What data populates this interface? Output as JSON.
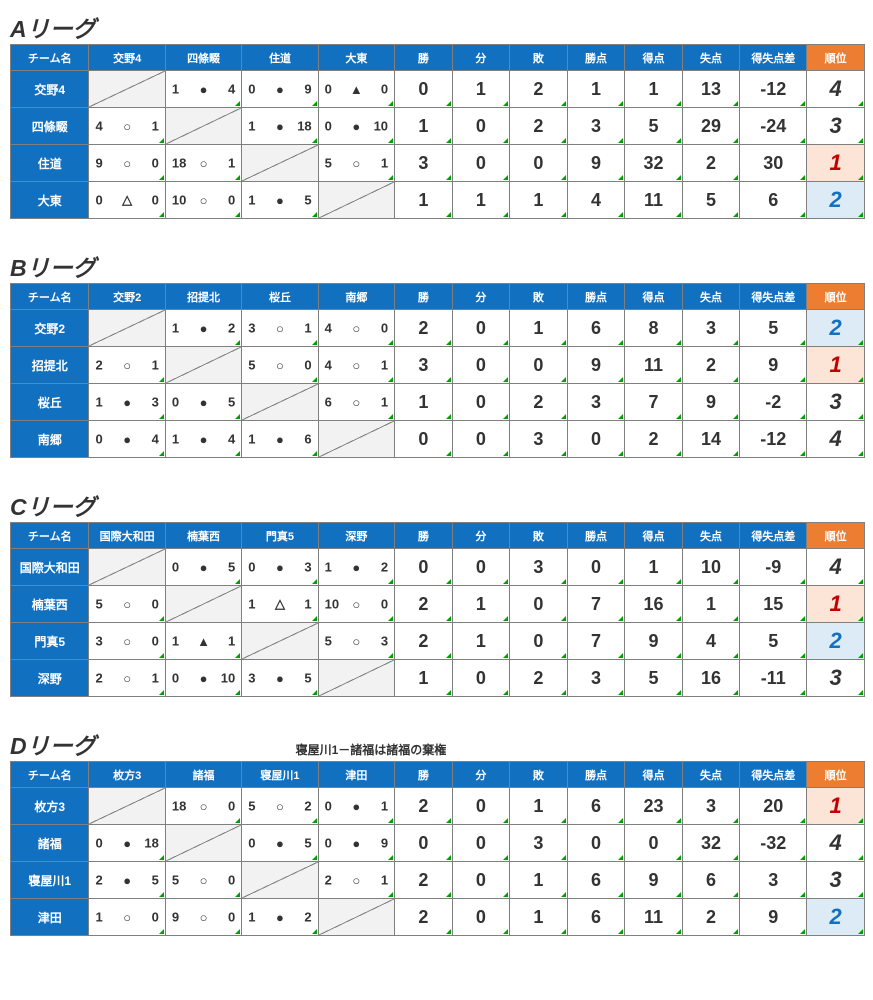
{
  "columns_common": [
    "チーム名",
    "勝",
    "分",
    "敗",
    "勝点",
    "得点",
    "失点",
    "得失点差",
    "順位"
  ],
  "result_mark": {
    "win": "○",
    "loss": "●",
    "draw": "▲",
    "draw2": "△"
  },
  "colors": {
    "header_bg": "#1270c1",
    "rank_header_bg": "#ed7d31",
    "rank1_bg": "#fce4d6",
    "rank1_fg": "#c00000",
    "rank2_bg": "#ddebf7",
    "rank2_fg": "#1270c1",
    "diag_bg": "#f2f2f2",
    "border": "#7f7f7f"
  },
  "leagues": [
    {
      "title": "Aリーグ",
      "teams": [
        "交野4",
        "四條畷",
        "住道",
        "大東"
      ],
      "match_headers": [
        "交野4",
        "四條畷",
        "住道",
        "大東"
      ],
      "rows": [
        {
          "team": "交野4",
          "matches": [
            null,
            {
              "l": "1",
              "m": "●",
              "r": "4"
            },
            {
              "l": "0",
              "m": "●",
              "r": "9"
            },
            {
              "l": "0",
              "m": "▲",
              "r": "0"
            }
          ],
          "stats": [
            "0",
            "1",
            "2",
            "1",
            "1",
            "13",
            "-12"
          ],
          "rank": 4
        },
        {
          "team": "四條畷",
          "matches": [
            {
              "l": "4",
              "m": "○",
              "r": "1"
            },
            null,
            {
              "l": "1",
              "m": "●",
              "r": "18"
            },
            {
              "l": "0",
              "m": "●",
              "r": "10"
            }
          ],
          "stats": [
            "1",
            "0",
            "2",
            "3",
            "5",
            "29",
            "-24"
          ],
          "rank": 3
        },
        {
          "team": "住道",
          "matches": [
            {
              "l": "9",
              "m": "○",
              "r": "0"
            },
            {
              "l": "18",
              "m": "○",
              "r": "1"
            },
            null,
            {
              "l": "5",
              "m": "○",
              "r": "1"
            }
          ],
          "stats": [
            "3",
            "0",
            "0",
            "9",
            "32",
            "2",
            "30"
          ],
          "rank": 1
        },
        {
          "team": "大東",
          "matches": [
            {
              "l": "0",
              "m": "△",
              "r": "0"
            },
            {
              "l": "10",
              "m": "○",
              "r": "0"
            },
            {
              "l": "1",
              "m": "●",
              "r": "5"
            },
            null
          ],
          "stats": [
            "1",
            "1",
            "1",
            "4",
            "11",
            "5",
            "6"
          ],
          "rank": 2
        }
      ]
    },
    {
      "title": "Bリーグ",
      "teams": [
        "交野2",
        "招提北",
        "桜丘",
        "南郷"
      ],
      "match_headers": [
        "交野2",
        "招提北",
        "桜丘",
        "南郷"
      ],
      "rows": [
        {
          "team": "交野2",
          "matches": [
            null,
            {
              "l": "1",
              "m": "●",
              "r": "2"
            },
            {
              "l": "3",
              "m": "○",
              "r": "1"
            },
            {
              "l": "4",
              "m": "○",
              "r": "0"
            }
          ],
          "stats": [
            "2",
            "0",
            "1",
            "6",
            "8",
            "3",
            "5"
          ],
          "rank": 2
        },
        {
          "team": "招提北",
          "matches": [
            {
              "l": "2",
              "m": "○",
              "r": "1"
            },
            null,
            {
              "l": "5",
              "m": "○",
              "r": "0"
            },
            {
              "l": "4",
              "m": "○",
              "r": "1"
            }
          ],
          "stats": [
            "3",
            "0",
            "0",
            "9",
            "11",
            "2",
            "9"
          ],
          "rank": 1
        },
        {
          "team": "桜丘",
          "matches": [
            {
              "l": "1",
              "m": "●",
              "r": "3"
            },
            {
              "l": "0",
              "m": "●",
              "r": "5"
            },
            null,
            {
              "l": "6",
              "m": "○",
              "r": "1"
            }
          ],
          "stats": [
            "1",
            "0",
            "2",
            "3",
            "7",
            "9",
            "-2"
          ],
          "rank": 3
        },
        {
          "team": "南郷",
          "matches": [
            {
              "l": "0",
              "m": "●",
              "r": "4"
            },
            {
              "l": "1",
              "m": "●",
              "r": "4"
            },
            {
              "l": "1",
              "m": "●",
              "r": "6"
            },
            null
          ],
          "stats": [
            "0",
            "0",
            "3",
            "0",
            "2",
            "14",
            "-12"
          ],
          "rank": 4
        }
      ]
    },
    {
      "title": "Cリーグ",
      "teams": [
        "国際大和田",
        "楠葉西",
        "門真5",
        "深野"
      ],
      "match_headers": [
        "国際大和田",
        "楠葉西",
        "門真5",
        "深野"
      ],
      "rows": [
        {
          "team": "国際大和田",
          "matches": [
            null,
            {
              "l": "0",
              "m": "●",
              "r": "5"
            },
            {
              "l": "0",
              "m": "●",
              "r": "3"
            },
            {
              "l": "1",
              "m": "●",
              "r": "2"
            }
          ],
          "stats": [
            "0",
            "0",
            "3",
            "0",
            "1",
            "10",
            "-9"
          ],
          "rank": 4
        },
        {
          "team": "楠葉西",
          "matches": [
            {
              "l": "5",
              "m": "○",
              "r": "0"
            },
            null,
            {
              "l": "1",
              "m": "△",
              "r": "1"
            },
            {
              "l": "10",
              "m": "○",
              "r": "0"
            }
          ],
          "stats": [
            "2",
            "1",
            "0",
            "7",
            "16",
            "1",
            "15"
          ],
          "rank": 1
        },
        {
          "team": "門真5",
          "matches": [
            {
              "l": "3",
              "m": "○",
              "r": "0"
            },
            {
              "l": "1",
              "m": "▲",
              "r": "1"
            },
            null,
            {
              "l": "5",
              "m": "○",
              "r": "3"
            }
          ],
          "stats": [
            "2",
            "1",
            "0",
            "7",
            "9",
            "4",
            "5"
          ],
          "rank": 2
        },
        {
          "team": "深野",
          "matches": [
            {
              "l": "2",
              "m": "○",
              "r": "1"
            },
            {
              "l": "0",
              "m": "●",
              "r": "10"
            },
            {
              "l": "3",
              "m": "●",
              "r": "5"
            },
            null
          ],
          "stats": [
            "1",
            "0",
            "2",
            "3",
            "5",
            "16",
            "-11"
          ],
          "rank": 3
        }
      ]
    },
    {
      "title": "Dリーグ",
      "note": "寝屋川1－諸福は諸福の棄権",
      "teams": [
        "枚方3",
        "諸福",
        "寝屋川1",
        "津田"
      ],
      "match_headers": [
        "枚方3",
        "諸福",
        "寝屋川1",
        "津田"
      ],
      "rows": [
        {
          "team": "枚方3",
          "matches": [
            null,
            {
              "l": "18",
              "m": "○",
              "r": "0"
            },
            {
              "l": "5",
              "m": "○",
              "r": "2"
            },
            {
              "l": "0",
              "m": "●",
              "r": "1"
            }
          ],
          "stats": [
            "2",
            "0",
            "1",
            "6",
            "23",
            "3",
            "20"
          ],
          "rank": 1
        },
        {
          "team": "諸福",
          "matches": [
            {
              "l": "0",
              "m": "●",
              "r": "18"
            },
            null,
            {
              "l": "0",
              "m": "●",
              "r": "5"
            },
            {
              "l": "0",
              "m": "●",
              "r": "9"
            }
          ],
          "stats": [
            "0",
            "0",
            "3",
            "0",
            "0",
            "32",
            "-32"
          ],
          "rank": 4
        },
        {
          "team": "寝屋川1",
          "matches": [
            {
              "l": "2",
              "m": "●",
              "r": "5"
            },
            {
              "l": "5",
              "m": "○",
              "r": "0"
            },
            null,
            {
              "l": "2",
              "m": "○",
              "r": "1"
            }
          ],
          "stats": [
            "2",
            "0",
            "1",
            "6",
            "9",
            "6",
            "3"
          ],
          "rank": 3
        },
        {
          "team": "津田",
          "matches": [
            {
              "l": "1",
              "m": "○",
              "r": "0"
            },
            {
              "l": "9",
              "m": "○",
              "r": "0"
            },
            {
              "l": "1",
              "m": "●",
              "r": "2"
            },
            null
          ],
          "stats": [
            "2",
            "0",
            "1",
            "6",
            "11",
            "2",
            "9"
          ],
          "rank": 2
        }
      ]
    }
  ]
}
